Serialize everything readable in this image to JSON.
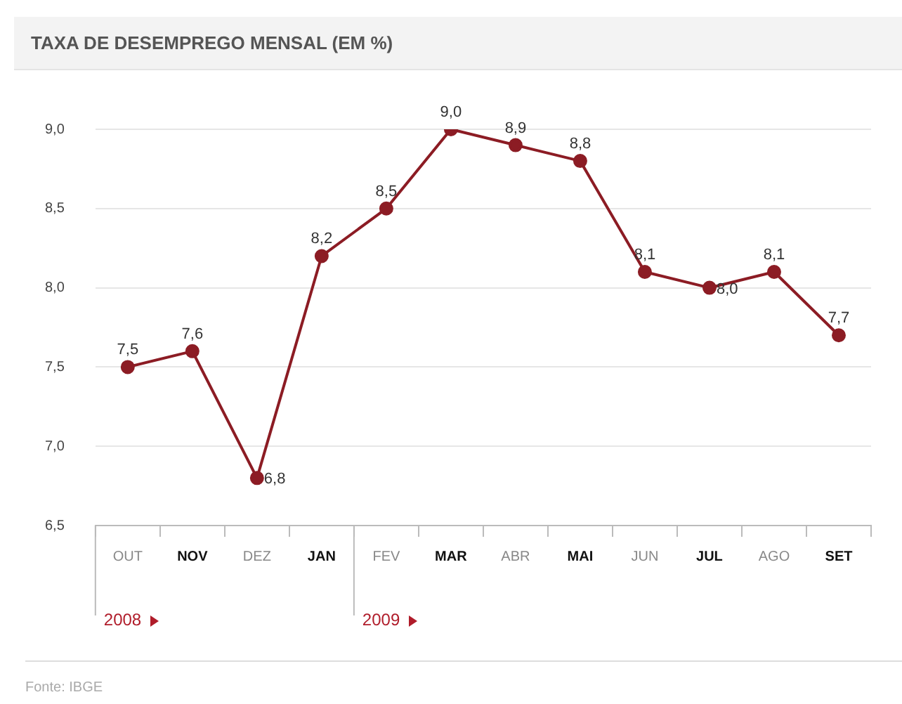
{
  "chart_data": {
    "type": "line",
    "title": "TAXA DE DESEMPREGO MENSAL (EM %)",
    "categories": [
      "OUT",
      "NOV",
      "DEZ",
      "JAN",
      "FEV",
      "MAR",
      "ABR",
      "MAI",
      "JUN",
      "JUL",
      "AGO",
      "SET"
    ],
    "values": [
      7.5,
      7.6,
      6.8,
      8.2,
      8.5,
      9.0,
      8.9,
      8.8,
      8.1,
      8.0,
      8.1,
      7.7
    ],
    "value_labels": [
      "7,5",
      "7,6",
      "6,8",
      "8,2",
      "8,5",
      "9,0",
      "8,9",
      "8,8",
      "8,1",
      "8,0",
      "8,1",
      "7,7"
    ],
    "color": "#8c1c24",
    "marker": "circle",
    "line_style": "solid",
    "grid": "y",
    "legend": false,
    "ylim": [
      6.5,
      9.0
    ],
    "yticks": [
      {
        "value": 6.5,
        "label": "6,5"
      },
      {
        "value": 7.0,
        "label": "7,0"
      },
      {
        "value": 7.5,
        "label": "7,5"
      },
      {
        "value": 8.0,
        "label": "8,0"
      },
      {
        "value": 8.5,
        "label": "8,5"
      },
      {
        "value": 9.0,
        "label": "9,0"
      }
    ],
    "annotations": [
      "2008",
      "2009",
      "Fonte: IBGE"
    ]
  }
}
